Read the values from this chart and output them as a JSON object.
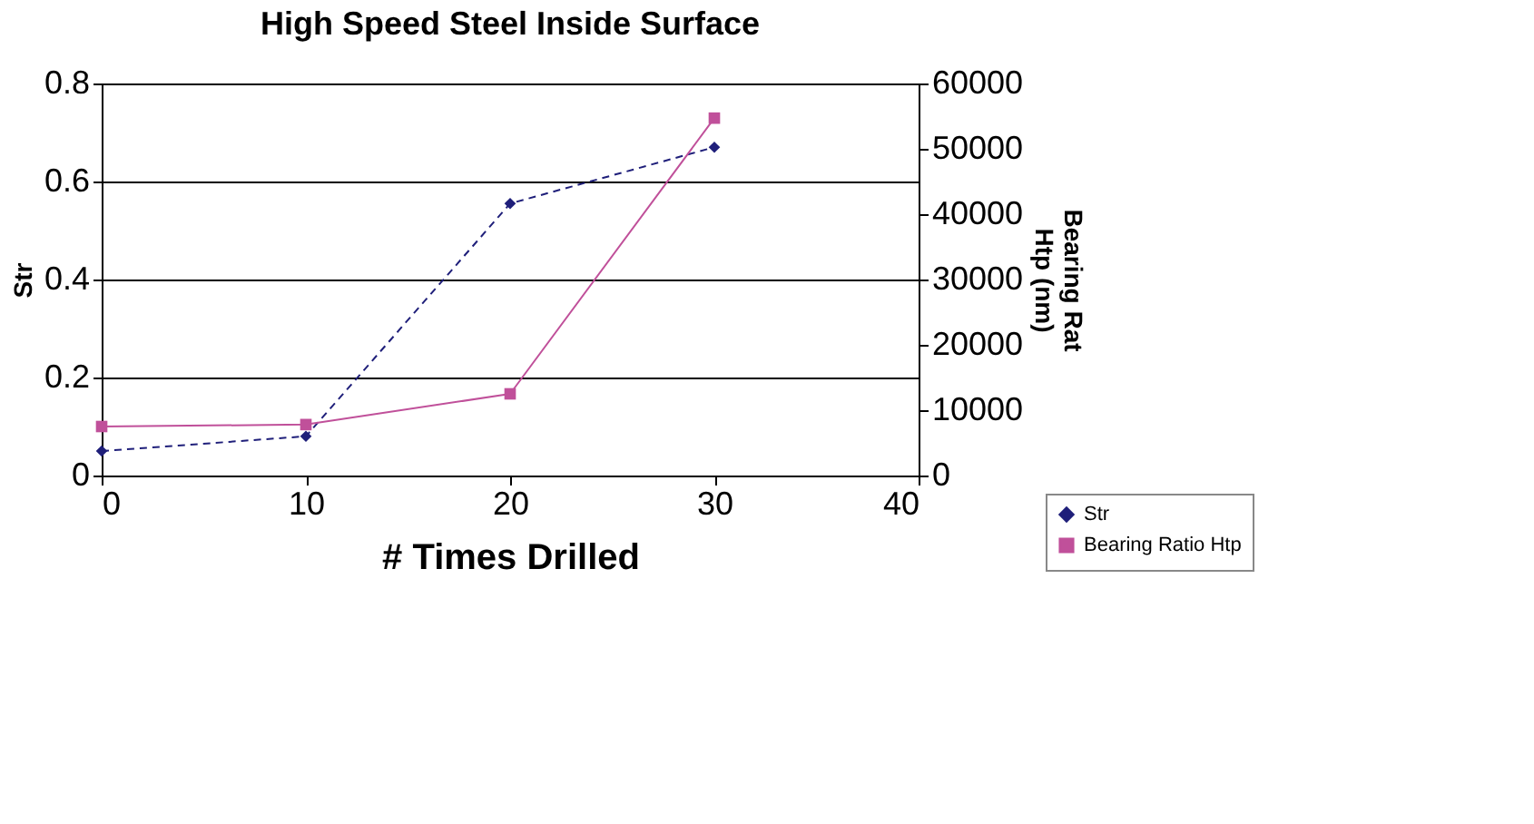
{
  "chart_data": {
    "type": "line",
    "title": "High Speed Steel Inside Surface",
    "xlabel": "# Times Drilled",
    "ylabel": "Str",
    "y2label": "Bearing Rat\nHtp (nm)",
    "x": [
      0,
      10,
      20,
      30
    ],
    "xlim": [
      0,
      40
    ],
    "xticks": [
      0,
      10,
      20,
      30,
      40
    ],
    "ylim": [
      0,
      0.8
    ],
    "yticks": [
      0,
      0.2,
      0.4,
      0.6,
      0.8
    ],
    "y2lim": [
      0,
      60000
    ],
    "y2ticks": [
      0,
      10000,
      20000,
      30000,
      40000,
      50000,
      60000
    ],
    "grid": "y",
    "legend": "bottom right",
    "series": [
      {
        "name": "Str",
        "color": "#1f1f7a",
        "values": [
          0.05,
          0.08,
          0.555,
          0.67
        ],
        "marker": "diamond",
        "line_style": "dashed"
      },
      {
        "name": "Bearing Ratio Htp",
        "color": "#c0509a",
        "values": [
          7500,
          7800,
          12500,
          54700
        ],
        "axis": "y2",
        "marker": "square",
        "line_style": "solid"
      }
    ]
  }
}
